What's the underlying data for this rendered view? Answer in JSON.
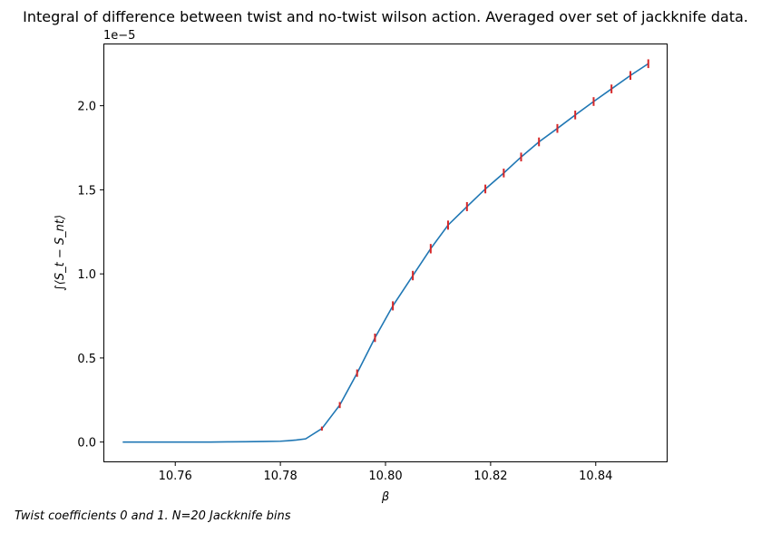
{
  "chart_data": {
    "type": "line",
    "title": "Integral of difference between twist and no-twist wilson action. Averaged over set of jackknife data.",
    "xlabel": "β",
    "ylabel": "∫⟨S_t − S_nt⟩",
    "y_offset_label": "1e−5",
    "xlim": [
      10.7465,
      10.8535
    ],
    "ylim": [
      -0.115,
      2.37
    ],
    "x_ticks": [
      10.76,
      10.78,
      10.8,
      10.82,
      10.84
    ],
    "x_tick_labels": [
      "10.76",
      "10.78",
      "10.80",
      "10.82",
      "10.84"
    ],
    "y_ticks": [
      0.0,
      0.5,
      1.0,
      1.5,
      2.0
    ],
    "y_tick_labels": [
      "0.0",
      "0.5",
      "1.0",
      "1.5",
      "2.0"
    ],
    "grid": false,
    "colors": {
      "line": "#1f77b4",
      "errorbar": "#d62728"
    },
    "series": [
      {
        "x": [
          10.75,
          10.7533,
          10.7567,
          10.76,
          10.7633,
          10.7667,
          10.77,
          10.7733,
          10.7767,
          10.78,
          10.7815,
          10.783,
          10.7848,
          10.7879,
          10.7913,
          10.7946,
          10.798,
          10.8014,
          10.8052,
          10.8086,
          10.8119,
          10.8155,
          10.819,
          10.8225,
          10.8258,
          10.8292,
          10.8327,
          10.8361,
          10.8396,
          10.843,
          10.8466,
          10.85
        ],
        "values": [
          0.0,
          0.0,
          0.0,
          0.0,
          0.0,
          0.0,
          0.001,
          0.002,
          0.003,
          0.005,
          0.008,
          0.012,
          0.019,
          0.08,
          0.22,
          0.41,
          0.62,
          0.81,
          0.99,
          1.15,
          1.29,
          1.4,
          1.505,
          1.6,
          1.695,
          1.785,
          1.865,
          1.945,
          2.025,
          2.1,
          2.18,
          2.25
        ]
      }
    ],
    "errorbars": {
      "x": [
        10.7879,
        10.7913,
        10.7946,
        10.798,
        10.8014,
        10.8052,
        10.8086,
        10.8119,
        10.8155,
        10.819,
        10.8225,
        10.8258,
        10.8292,
        10.8327,
        10.8361,
        10.8396,
        10.843,
        10.8466,
        10.85
      ],
      "values": [
        0.08,
        0.22,
        0.41,
        0.62,
        0.81,
        0.99,
        1.15,
        1.29,
        1.4,
        1.505,
        1.6,
        1.695,
        1.785,
        1.865,
        1.945,
        2.025,
        2.1,
        2.18,
        2.25
      ],
      "err": [
        0.012,
        0.018,
        0.022,
        0.025,
        0.027,
        0.028,
        0.028,
        0.027,
        0.027,
        0.026,
        0.026,
        0.026,
        0.026,
        0.026,
        0.026,
        0.026,
        0.026,
        0.026,
        0.026
      ]
    }
  },
  "footnote": "Twist coefficients 0 and 1. N=20 Jackknife bins"
}
